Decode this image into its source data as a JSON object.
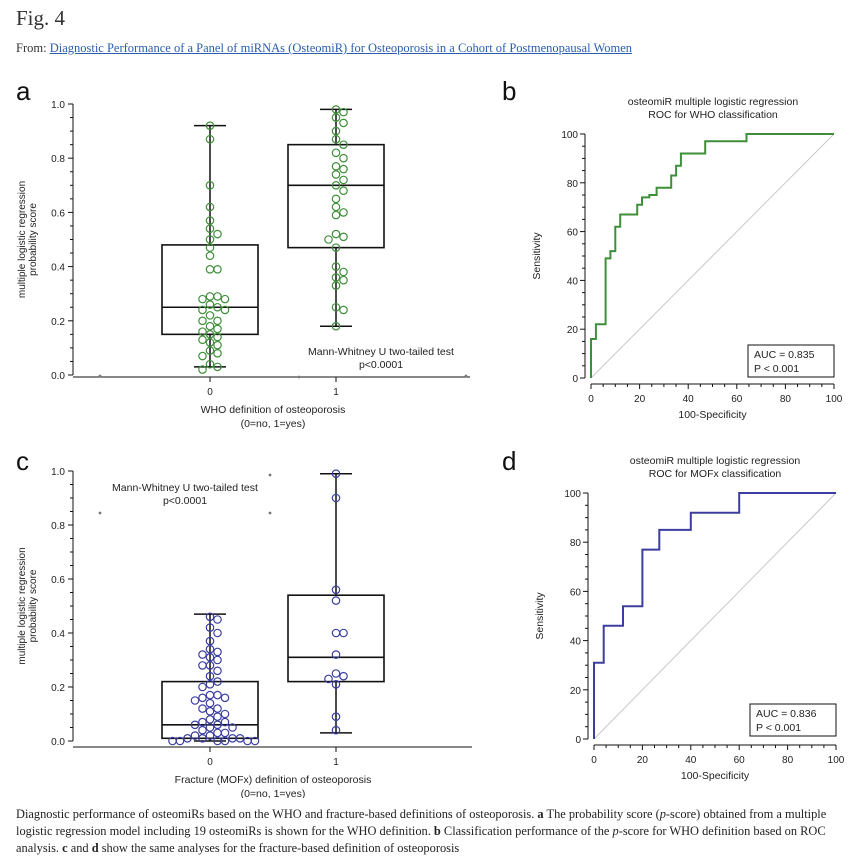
{
  "header": {
    "fig_label": "Fig. 4",
    "from_prefix": "From: ",
    "from_link": "Diagnostic Performance of a Panel of miRNAs (OsteomiR) for Osteoporosis in a Cohort of Postmenopausal Women"
  },
  "caption": {
    "t1": "Diagnostic performance of osteomiRs based on the WHO and fracture-based definitions of osteoporosis. ",
    "b1": "a",
    "t2": " The probability score (",
    "i1": "p",
    "t3": "-score) obtained from a multiple logistic regression model including 19 osteomiRs is shown for the WHO definition. ",
    "b2": "b",
    "t4": " Classification performance of the ",
    "i2": "p",
    "t5": "-score for WHO definition based on ROC analysis. ",
    "b3": "c",
    "t6": " and ",
    "b4": "d",
    "t7": " show the same analyses for the fracture-based definition of osteoporosis"
  },
  "colors": {
    "green": "#3f8f3a",
    "blue": "#3b3ea0",
    "diag": "#c8c8c8",
    "box": "#111111"
  },
  "chart_data": [
    {
      "panel": "a",
      "type": "box+strip",
      "ylabel": "multiple logistic regression\nprobability score",
      "xlabel": "WHO definition of osteoporosis\n(0=no, 1=yes)",
      "yticks": [
        "0.0",
        "0.2",
        "0.4",
        "0.6",
        "0.8",
        "1.0"
      ],
      "ylim": [
        0,
        1.0
      ],
      "categories": [
        "0",
        "1"
      ],
      "annotation": [
        "Mann-Whitney U two-tailed test",
        "p<0.0001"
      ],
      "boxes": [
        {
          "group": "0",
          "whisker_low": 0.03,
          "q1": 0.15,
          "median": 0.25,
          "q3": 0.48,
          "whisker_high": 0.92
        },
        {
          "group": "1",
          "whisker_low": 0.18,
          "q1": 0.47,
          "median": 0.7,
          "q3": 0.85,
          "whisker_high": 0.98
        }
      ],
      "points": [
        [
          0.92,
          0.87,
          0.7,
          0.62,
          0.57,
          0.54,
          0.52,
          0.5,
          0.47,
          0.44,
          0.39,
          0.39,
          0.29,
          0.29,
          0.28,
          0.28,
          0.26,
          0.25,
          0.24,
          0.24,
          0.22,
          0.2,
          0.2,
          0.18,
          0.17,
          0.16,
          0.15,
          0.14,
          0.13,
          0.12,
          0.11,
          0.09,
          0.08,
          0.07,
          0.04,
          0.03,
          0.02
        ],
        [
          0.98,
          0.97,
          0.95,
          0.93,
          0.9,
          0.87,
          0.85,
          0.82,
          0.8,
          0.77,
          0.76,
          0.74,
          0.72,
          0.7,
          0.68,
          0.65,
          0.62,
          0.6,
          0.59,
          0.52,
          0.51,
          0.5,
          0.47,
          0.4,
          0.38,
          0.36,
          0.35,
          0.33,
          0.25,
          0.24,
          0.18
        ]
      ]
    },
    {
      "panel": "b",
      "type": "line",
      "title": "osteomiR multiple logistic regression\nROC for WHO classification",
      "xlabel": "100-Specificity",
      "ylabel": "Sensitivity",
      "xlim": [
        0,
        100
      ],
      "ylim": [
        0,
        100
      ],
      "xticks": [
        "0",
        "20",
        "40",
        "60",
        "80",
        "100"
      ],
      "yticks": [
        "0",
        "20",
        "40",
        "60",
        "80",
        "100"
      ],
      "auc_label": "AUC = 0.835",
      "p_label": "P < 0.001",
      "x": [
        0,
        0,
        2,
        2,
        6,
        6,
        8,
        8,
        10,
        10,
        12,
        12,
        19,
        19,
        21,
        21,
        24,
        24,
        27,
        27,
        33,
        33,
        35,
        35,
        37,
        37,
        47,
        47,
        64,
        64,
        100
      ],
      "y": [
        0,
        16,
        16,
        22,
        22,
        49,
        49,
        52,
        52,
        62,
        62,
        67,
        67,
        71,
        71,
        74,
        74,
        75,
        75,
        78,
        78,
        83,
        83,
        87,
        87,
        92,
        92,
        97,
        97,
        100,
        100
      ]
    },
    {
      "panel": "c",
      "type": "box+strip",
      "ylabel": "multiple logistic regression\nprobability score",
      "xlabel": "Fracture (MOFx) definition of osteoporosis\n(0=no, 1=yes)",
      "yticks": [
        "0.0",
        "0.2",
        "0.4",
        "0.6",
        "0.8",
        "1.0"
      ],
      "ylim": [
        0,
        1.0
      ],
      "categories": [
        "0",
        "1"
      ],
      "annotation": [
        "Mann-Whitney U two-tailed test",
        "p<0.0001"
      ],
      "boxes": [
        {
          "group": "0",
          "whisker_low": 0.0,
          "q1": 0.01,
          "median": 0.06,
          "q3": 0.22,
          "whisker_high": 0.47
        },
        {
          "group": "1",
          "whisker_low": 0.03,
          "q1": 0.22,
          "median": 0.31,
          "q3": 0.54,
          "whisker_high": 0.99
        }
      ],
      "points": [
        [
          0.46,
          0.45,
          0.42,
          0.4,
          0.37,
          0.34,
          0.33,
          0.32,
          0.31,
          0.3,
          0.28,
          0.28,
          0.26,
          0.24,
          0.22,
          0.21,
          0.2,
          0.17,
          0.17,
          0.16,
          0.16,
          0.15,
          0.14,
          0.12,
          0.12,
          0.11,
          0.1,
          0.09,
          0.08,
          0.07,
          0.07,
          0.06,
          0.06,
          0.05,
          0.05,
          0.04,
          0.03,
          0.03,
          0.02,
          0.02,
          0.01,
          0.01,
          0.01,
          0.01,
          0.0,
          0.0,
          0.0,
          0.0,
          0.0,
          0.0
        ],
        [
          0.99,
          0.9,
          0.56,
          0.52,
          0.4,
          0.4,
          0.32,
          0.25,
          0.24,
          0.23,
          0.21,
          0.09,
          0.04
        ]
      ]
    },
    {
      "panel": "d",
      "type": "line",
      "title": "osteomiR multiple logistic regression\nROC for MOFx classification",
      "xlabel": "100-Specificity",
      "ylabel": "Sensitivity",
      "xlim": [
        0,
        100
      ],
      "ylim": [
        0,
        100
      ],
      "xticks": [
        "0",
        "20",
        "40",
        "60",
        "80",
        "100"
      ],
      "yticks": [
        "0",
        "20",
        "40",
        "60",
        "80",
        "100"
      ],
      "auc_label": "AUC = 0.836",
      "p_label": "P < 0.001",
      "x": [
        0,
        0,
        4,
        4,
        12,
        12,
        20,
        20,
        27,
        27,
        40,
        40,
        60,
        60,
        100
      ],
      "y": [
        0,
        31,
        31,
        46,
        46,
        54,
        54,
        77,
        77,
        85,
        85,
        92,
        92,
        100,
        100
      ]
    }
  ]
}
